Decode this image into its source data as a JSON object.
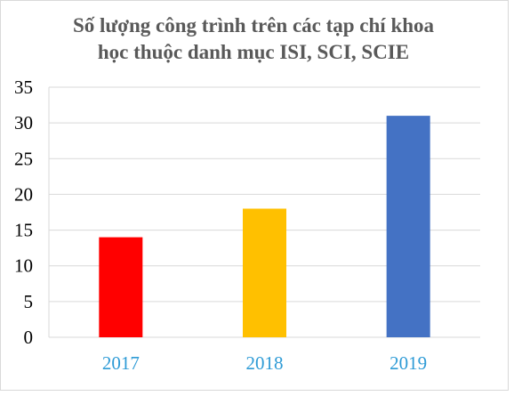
{
  "chart_data": {
    "type": "bar",
    "title_lines": [
      "Số lượng công trình trên các tạp chí khoa",
      "học thuộc danh mục ISI, SCI, SCIE"
    ],
    "categories": [
      "2017",
      "2018",
      "2019"
    ],
    "values": [
      14,
      18,
      31
    ],
    "bar_colors": [
      "#ff0000",
      "#ffc000",
      "#4472c4"
    ],
    "xtick_color": "#2e9bd6",
    "xlabel": "",
    "ylabel": "",
    "ylim": [
      0,
      35
    ],
    "yticks": [
      0,
      5,
      10,
      15,
      20,
      25,
      30,
      35
    ],
    "grid": true,
    "legend": "none"
  }
}
